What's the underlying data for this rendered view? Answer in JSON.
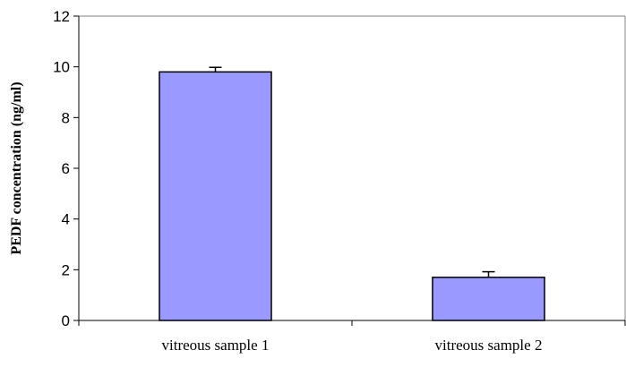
{
  "chart_data": {
    "type": "bar",
    "categories": [
      "vitreous sample 1",
      "vitreous sample 2"
    ],
    "values": [
      9.8,
      1.7
    ],
    "errors": [
      0.18,
      0.22
    ],
    "ylabel": "PEDF concentration (ng/ml)",
    "ylim": [
      0,
      12
    ],
    "yticks": [
      0,
      2,
      4,
      6,
      8,
      10,
      12
    ],
    "bar_color": "#9999ff",
    "grid": false,
    "legend": false
  }
}
